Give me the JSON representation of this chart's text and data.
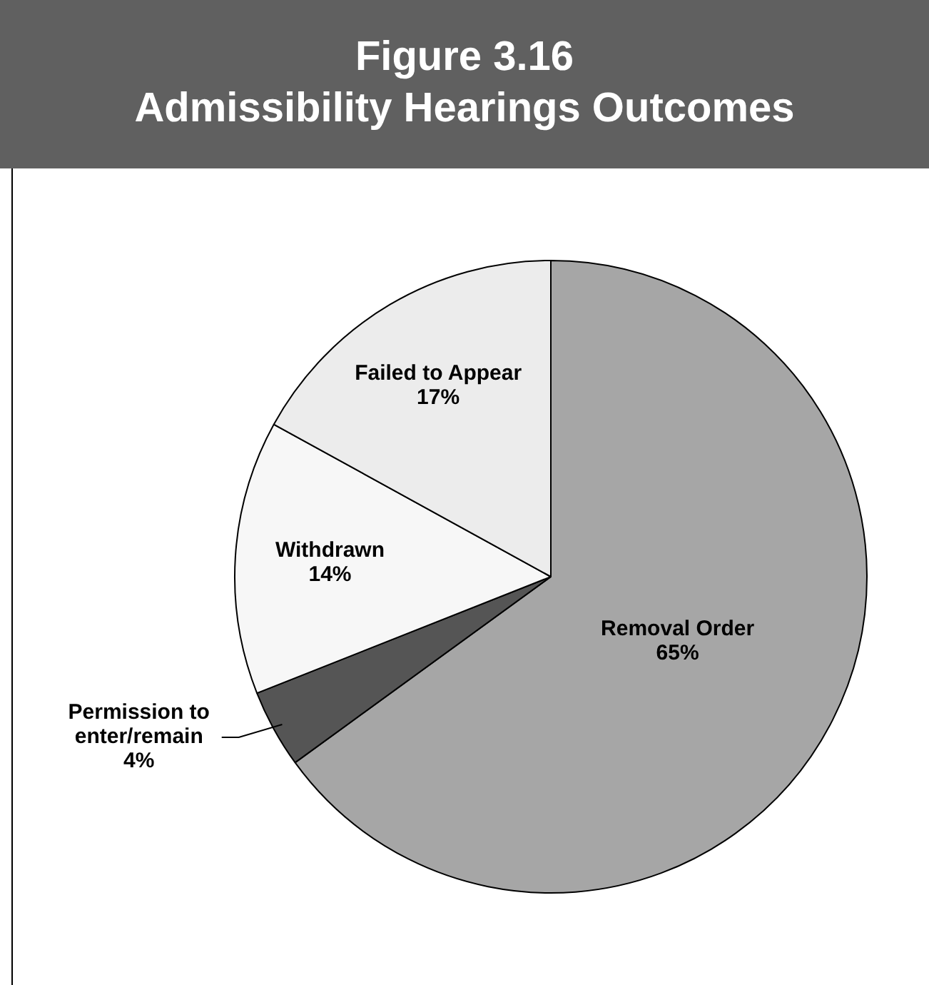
{
  "chart_data": {
    "type": "pie",
    "title": "Figure 3.16",
    "subtitle": "Admissibility Hearings Outcomes",
    "categories": [
      "Removal Order",
      "Permission to enter/remain",
      "Withdrawn",
      "Failed to Appear"
    ],
    "values": [
      65,
      4,
      14,
      17
    ],
    "colors": [
      "#a6a6a6",
      "#555555",
      "#f7f7f7",
      "#ececec"
    ],
    "value_labels": [
      "65%",
      "4%",
      "14%",
      "17%"
    ],
    "legend": false
  }
}
